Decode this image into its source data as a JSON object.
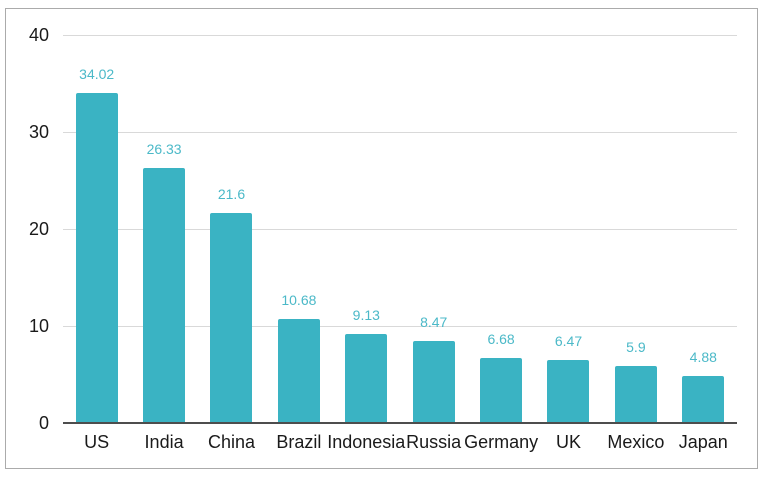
{
  "chart_data": {
    "type": "bar",
    "title": "",
    "xlabel": "",
    "ylabel": "",
    "categories": [
      "US",
      "India",
      "China",
      "Brazil",
      "Indonesia",
      "Russia",
      "Germany",
      "UK",
      "Mexico",
      "Japan"
    ],
    "values": [
      34.02,
      26.33,
      21.6,
      10.68,
      9.13,
      8.47,
      6.68,
      6.47,
      5.9,
      4.88
    ],
    "value_labels": [
      "34.02",
      "26.33",
      "21.6",
      "10.68",
      "9.13",
      "8.47",
      "6.68",
      "6.47",
      "5.9",
      "4.88"
    ],
    "ylim": [
      0,
      40
    ],
    "yticks": [
      0,
      10,
      20,
      30,
      40
    ],
    "grid": true,
    "legend": false
  },
  "colors": {
    "bar": "#3ab3c3",
    "value_label": "#4bb9c8",
    "tick_label": "#1a1a1a",
    "gridline": "#d9d9d9",
    "axis_line": "#4d4d4d",
    "frame_border": "#ababab",
    "background": "#ffffff"
  }
}
